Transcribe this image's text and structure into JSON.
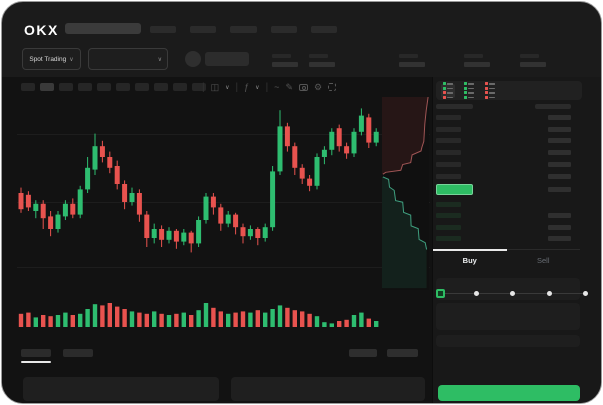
{
  "app": {
    "logo_text": "OKX",
    "accent_green": "#2ebd64",
    "accent_red": "#e8534f"
  },
  "header": {
    "nav_placeholder_widths": [
      26,
      26,
      27,
      26,
      26
    ],
    "search": {
      "placeholder": ""
    },
    "market_dropdown_label": "Spot Trading",
    "ticker_stat_count": 5,
    "ticker_offsets": [
      0,
      37,
      127,
      192,
      248
    ]
  },
  "glyphs": {
    "chevron": "∨",
    "chart_type": "◫",
    "indicator": "ƒ",
    "wave": "~",
    "pencil": "✎",
    "gear": "⚙"
  },
  "chart_toolbar": {
    "timeframe_count": 10,
    "active_timeframe_index": 1
  },
  "orderbook": {
    "view_modes": [
      "combined",
      "bids-only",
      "asks-only"
    ],
    "active_view_index": 0,
    "ask_row_count": 6,
    "bid_row_count": 4,
    "ask_row_color": "#282828",
    "bid_row_color": "#1b2b20",
    "last_price_color": "#2ebd64"
  },
  "trade_panel": {
    "tabs": [
      {
        "label": "Buy",
        "active": true
      },
      {
        "label": "Sell",
        "active": false
      }
    ],
    "slider_stop_count": 5,
    "active_slider_stop": 0,
    "submit_color": "#2ebd64"
  },
  "chart_data": {
    "type": "candlestick",
    "title": "",
    "note": "skeleton trading UI; OHLC estimated on normalized 0-100 price scale, left to right",
    "ylim": [
      0,
      100
    ],
    "grid": true,
    "colors": {
      "up": "#2ebd70",
      "down": "#e8534f"
    },
    "candles": [
      [
        50,
        41,
        39,
        53,
        "r"
      ],
      [
        49,
        42,
        40,
        51,
        "r"
      ],
      [
        40,
        44,
        36,
        46,
        "g"
      ],
      [
        44,
        36,
        30,
        46,
        "r"
      ],
      [
        37,
        30,
        26,
        40,
        "r"
      ],
      [
        30,
        38,
        28,
        40,
        "g"
      ],
      [
        37,
        44,
        35,
        46,
        "g"
      ],
      [
        44,
        38,
        36,
        47,
        "r"
      ],
      [
        38,
        52,
        36,
        54,
        "g"
      ],
      [
        52,
        64,
        50,
        70,
        "g"
      ],
      [
        63,
        76,
        60,
        83,
        "g"
      ],
      [
        76,
        70,
        67,
        79,
        "r"
      ],
      [
        70,
        64,
        61,
        73,
        "r"
      ],
      [
        65,
        55,
        52,
        68,
        "r"
      ],
      [
        55,
        45,
        41,
        57,
        "r"
      ],
      [
        45,
        50,
        43,
        53,
        "g"
      ],
      [
        50,
        38,
        34,
        52,
        "r"
      ],
      [
        38,
        25,
        20,
        40,
        "r"
      ],
      [
        25,
        30,
        22,
        33,
        "g"
      ],
      [
        30,
        24,
        20,
        32,
        "r"
      ],
      [
        24,
        29,
        22,
        31,
        "g"
      ],
      [
        29,
        23,
        19,
        30,
        "r"
      ],
      [
        23,
        28,
        21,
        30,
        "g"
      ],
      [
        28,
        22,
        17,
        29,
        "r"
      ],
      [
        22,
        35,
        20,
        37,
        "g"
      ],
      [
        35,
        48,
        33,
        50,
        "g"
      ],
      [
        48,
        42,
        38,
        50,
        "r"
      ],
      [
        42,
        33,
        29,
        44,
        "r"
      ],
      [
        33,
        38,
        31,
        40,
        "g"
      ],
      [
        38,
        31,
        27,
        39,
        "r"
      ],
      [
        31,
        26,
        22,
        33,
        "r"
      ],
      [
        26,
        30,
        24,
        32,
        "g"
      ],
      [
        30,
        25,
        21,
        31,
        "r"
      ],
      [
        25,
        31,
        23,
        33,
        "g"
      ],
      [
        31,
        62,
        29,
        65,
        "g"
      ],
      [
        62,
        87,
        60,
        96,
        "g"
      ],
      [
        87,
        76,
        73,
        89,
        "r"
      ],
      [
        76,
        64,
        60,
        78,
        "r"
      ],
      [
        64,
        58,
        55,
        66,
        "r"
      ],
      [
        58,
        54,
        51,
        60,
        "r"
      ],
      [
        54,
        70,
        52,
        72,
        "g"
      ],
      [
        70,
        74,
        66,
        76,
        "g"
      ],
      [
        74,
        84,
        71,
        86,
        "g"
      ],
      [
        86,
        76,
        73,
        88,
        "r"
      ],
      [
        76,
        72,
        69,
        78,
        "r"
      ],
      [
        72,
        84,
        70,
        86,
        "g"
      ],
      [
        84,
        93,
        82,
        97,
        "g"
      ],
      [
        92,
        78,
        75,
        94,
        "r"
      ],
      [
        78,
        84,
        76,
        86,
        "g"
      ]
    ],
    "volume": [
      0.55,
      0.6,
      0.4,
      0.5,
      0.45,
      0.5,
      0.6,
      0.5,
      0.55,
      0.75,
      0.95,
      0.9,
      1.0,
      0.85,
      0.75,
      0.65,
      0.6,
      0.55,
      0.65,
      0.55,
      0.5,
      0.55,
      0.6,
      0.5,
      0.7,
      1.0,
      0.8,
      0.65,
      0.55,
      0.6,
      0.65,
      0.6,
      0.7,
      0.6,
      0.75,
      0.9,
      0.8,
      0.7,
      0.65,
      0.55,
      0.45,
      0.2,
      0.15,
      0.25,
      0.3,
      0.5,
      0.6,
      0.35,
      0.25
    ],
    "depth": {
      "asks_line_color": "#a05555",
      "bids_line_color": "#3f9f7f",
      "asks_fill": "rgba(190,70,70,0.13)",
      "bids_fill": "rgba(45,160,115,0.12)",
      "asks_curve": [
        [
          0.98,
          0.0
        ],
        [
          0.94,
          0.07
        ],
        [
          0.91,
          0.14
        ],
        [
          0.89,
          0.23
        ],
        [
          0.85,
          0.26
        ],
        [
          0.83,
          0.28
        ],
        [
          0.64,
          0.3
        ],
        [
          0.61,
          0.34
        ],
        [
          0.44,
          0.35
        ],
        [
          0.4,
          0.38
        ],
        [
          0.08,
          0.39
        ],
        [
          0.02,
          0.4
        ]
      ],
      "bids_curve": [
        [
          0.02,
          0.414
        ],
        [
          0.14,
          0.427
        ],
        [
          0.16,
          0.467
        ],
        [
          0.26,
          0.484
        ],
        [
          0.29,
          0.537
        ],
        [
          0.44,
          0.545
        ],
        [
          0.46,
          0.598
        ],
        [
          0.61,
          0.612
        ],
        [
          0.62,
          0.668
        ],
        [
          0.77,
          0.682
        ],
        [
          0.79,
          0.738
        ],
        [
          0.92,
          0.755
        ],
        [
          0.95,
          0.79
        ]
      ]
    }
  }
}
